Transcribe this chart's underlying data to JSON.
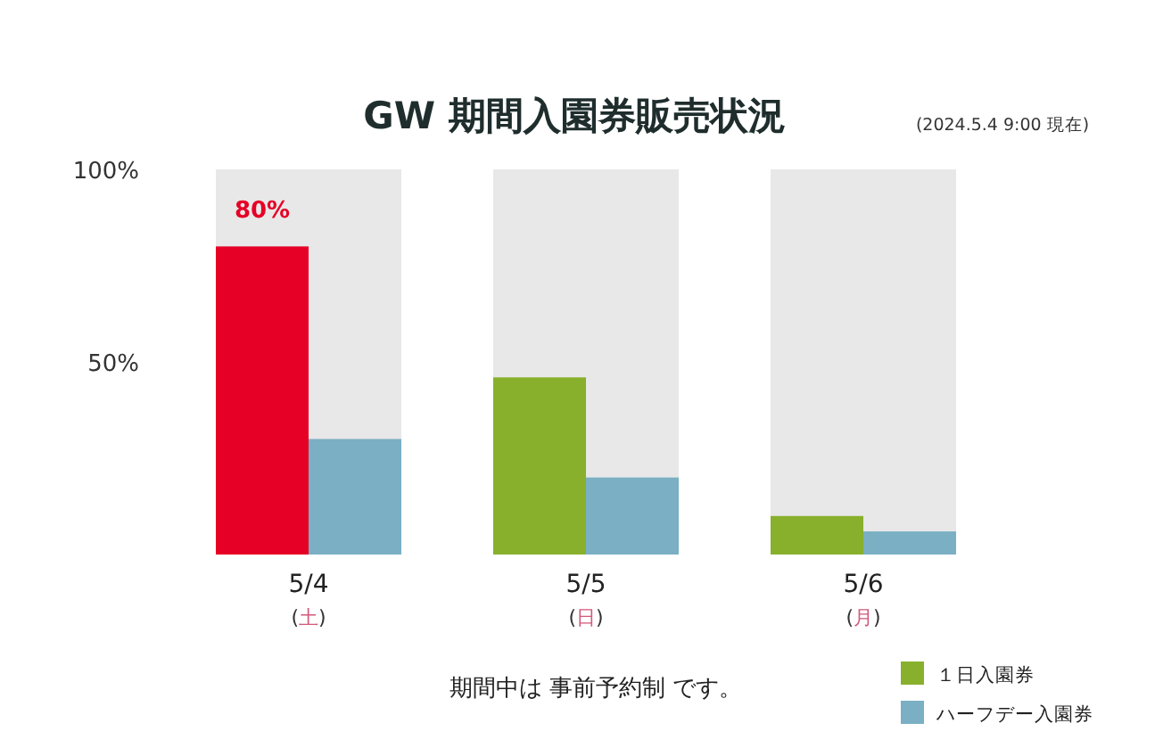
{
  "chart_data": {
    "type": "bar",
    "title": "GW 期間入園券販売状況",
    "categories": [
      "5/4\n(土)",
      "5/5\n(日)",
      "5/6\n(月)"
    ],
    "series": [
      {
        "name": "１日入園券",
        "color": "#88b02c",
        "colors": [
          "#e60026",
          "#88b02c",
          "#88b02c"
        ],
        "values": [
          80,
          46,
          10
        ],
        "value_labels": [
          "80%",
          null,
          null
        ]
      },
      {
        "name": "ハーフデー入園券",
        "color": "#7aafc4",
        "values": [
          30,
          20,
          6
        ]
      }
    ],
    "ylim": [
      0,
      100
    ],
    "yticks": [
      {
        "value": 50,
        "label": "50%"
      },
      {
        "value": 100,
        "label": "100%"
      }
    ],
    "bands": [
      {
        "axis": "x",
        "from": "5/4\n(土)",
        "to": "5/4\n(土)",
        "color": "#e8e8e8"
      },
      {
        "axis": "x",
        "from": "5/5\n(日)",
        "to": "5/5\n(日)",
        "color": "#e8e8e8"
      },
      {
        "axis": "x",
        "from": "5/6\n(月)",
        "to": "5/6\n(月)",
        "color": "#e8e8e8"
      }
    ],
    "grid": false,
    "legend": "bottom right",
    "annotations": [
      "(2024.5.4  9:00 現在)",
      "期間中は 事前予約制 です。"
    ]
  }
}
